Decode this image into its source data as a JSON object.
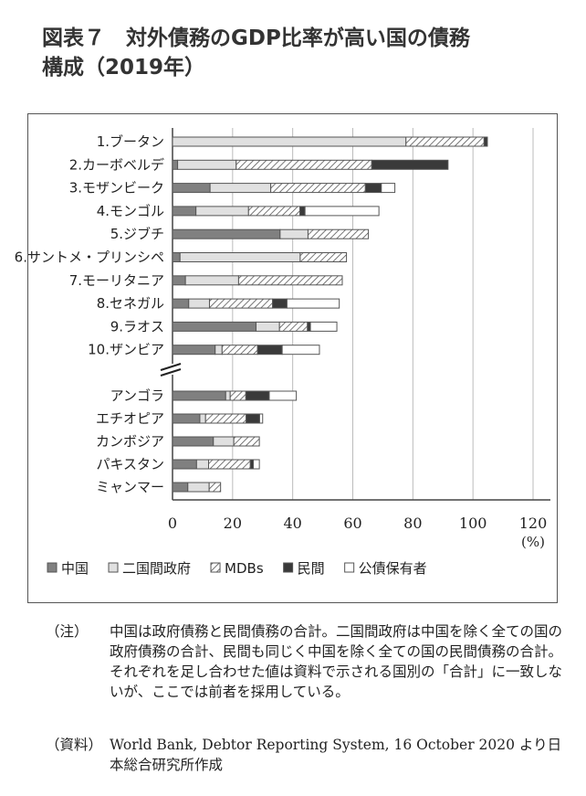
{
  "title_line1": "図表７　対外債務のGDP比率が高い国の債務",
  "title_line2": "構成（2019年）",
  "chart_data": {
    "type": "bar",
    "stacked": true,
    "orientation": "horizontal",
    "categories": [
      "1.ブータン",
      "2.カーボベルデ",
      "3.モザンビーク",
      "4.モンゴル",
      "5.ジブチ",
      "6.サントメ・プリンシペ",
      "7.モーリタニア",
      "8.セネガル",
      "9.ラオス",
      "10.ザンビア",
      "アンゴラ",
      "エチオピア",
      "カンボジア",
      "パキスタン",
      "ミャンマー"
    ],
    "series": [
      {
        "name": "中国",
        "color": "#808080",
        "values": [
          0,
          1.7,
          12.5,
          7.8,
          35.8,
          2.5,
          4.3,
          5.4,
          27.8,
          14.2,
          17.7,
          9.1,
          13.6,
          8,
          5.1
        ]
      },
      {
        "name": "二国間政府",
        "color": "#e0e0e0",
        "values": [
          77.7,
          19.5,
          20.2,
          17.5,
          9.3,
          40,
          17.7,
          6.9,
          7.8,
          2.3,
          1.5,
          1.9,
          6.8,
          4,
          7.1
        ]
      },
      {
        "name": "MDBs",
        "color": "hatch",
        "values": [
          26,
          45.1,
          31.5,
          17.1,
          20.1,
          15.4,
          34.5,
          21,
          9.3,
          11.8,
          5.2,
          13.5,
          8.5,
          13.9,
          3.8
        ]
      },
      {
        "name": "民間",
        "color": "#3a3a3a",
        "values": [
          1.1,
          25.4,
          5.3,
          1.7,
          0,
          0,
          0,
          4.8,
          1,
          8.2,
          7.8,
          4.5,
          0,
          1,
          0
        ]
      },
      {
        "name": "公債保有者",
        "color": "#ffffff",
        "values": [
          0,
          0,
          4.5,
          24.6,
          0,
          0,
          0,
          17.4,
          8.8,
          12.4,
          9,
          1,
          0,
          2,
          0
        ]
      }
    ],
    "xticks": [
      "0",
      "20",
      "40",
      "60",
      "80",
      "100",
      "120"
    ],
    "xlim": [
      0,
      120
    ],
    "xunit": "(%)",
    "grid": true,
    "legend_position": "bottom"
  },
  "notes": [
    {
      "key": "（注）",
      "text": "中国は政府債務と民間債務の合計。二国間政府は中国を除く全ての国の政府債務の合計、民間も同じく中国を除く全ての国の民間債務の合計。それぞれを足し合わせた値は資料で示される国別の「合計」に一致しないが、ここでは前者を採用している。"
    },
    {
      "key": "（資料）",
      "text": "World Bank, Debtor Reporting System, 16 October 2020 より日本総合研究所作成"
    }
  ]
}
